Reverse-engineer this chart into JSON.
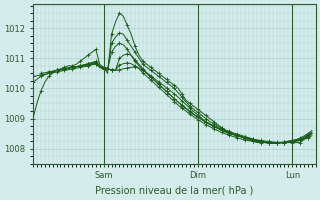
{
  "background_color": "#d4ecec",
  "grid_color": "#b0d0d0",
  "line_color": "#1a5c1a",
  "marker": "+",
  "xlabel": "Pression niveau de la mer( hPa )",
  "ylim": [
    1007.5,
    1012.8
  ],
  "yticks": [
    1008,
    1009,
    1010,
    1011,
    1012
  ],
  "xlim": [
    0,
    72
  ],
  "vline_positions": [
    18,
    42,
    66
  ],
  "xtick_positions": [
    18,
    42,
    66
  ],
  "xtick_labels": [
    "Sam",
    "Dim",
    "Lun"
  ],
  "series": [
    {
      "x": [
        0,
        1,
        2,
        3,
        4,
        5,
        6,
        7,
        8,
        9,
        10,
        11,
        12,
        13,
        14,
        15,
        16,
        17,
        18,
        19,
        20,
        21,
        22,
        23,
        24,
        25,
        26,
        27,
        28,
        29,
        30,
        31,
        32,
        33,
        34,
        35,
        36,
        37,
        38,
        39,
        40,
        41,
        42,
        43,
        44,
        45,
        46,
        47,
        48,
        49,
        50,
        51,
        52,
        53,
        54,
        55,
        56,
        57,
        58,
        59,
        60,
        61,
        62,
        63,
        64,
        65,
        66,
        67,
        68,
        69,
        70,
        71
      ],
      "y": [
        1009.0,
        1009.5,
        1009.9,
        1010.2,
        1010.4,
        1010.5,
        1010.6,
        1010.65,
        1010.7,
        1010.75,
        1010.75,
        1010.8,
        1010.9,
        1011.0,
        1011.1,
        1011.2,
        1011.3,
        1010.8,
        1010.7,
        1010.5,
        1011.8,
        1012.2,
        1012.5,
        1012.4,
        1012.1,
        1011.8,
        1011.4,
        1011.1,
        1010.9,
        1010.8,
        1010.7,
        1010.6,
        1010.5,
        1010.4,
        1010.3,
        1010.2,
        1010.1,
        1010.0,
        1009.8,
        1009.6,
        1009.5,
        1009.4,
        1009.3,
        1009.2,
        1009.1,
        1009.0,
        1008.9,
        1008.8,
        1008.7,
        1008.6,
        1008.55,
        1008.5,
        1008.45,
        1008.4,
        1008.35,
        1008.3,
        1008.25,
        1008.2,
        1008.2,
        1008.2,
        1008.2,
        1008.2,
        1008.2,
        1008.2,
        1008.2,
        1008.2,
        1008.2,
        1008.2,
        1008.2,
        1008.3,
        1008.4,
        1008.5
      ]
    },
    {
      "x": [
        0,
        1,
        2,
        3,
        4,
        5,
        6,
        7,
        8,
        9,
        10,
        11,
        12,
        13,
        14,
        15,
        16,
        17,
        18,
        19,
        20,
        21,
        22,
        23,
        24,
        25,
        26,
        27,
        28,
        29,
        30,
        31,
        32,
        33,
        34,
        35,
        36,
        37,
        38,
        39,
        40,
        41,
        42,
        43,
        44,
        45,
        46,
        47,
        48,
        49,
        50,
        51,
        52,
        53,
        54,
        55,
        56,
        57,
        58,
        59,
        60,
        61,
        62,
        63,
        64,
        65,
        66,
        67,
        68,
        69,
        70,
        71
      ],
      "y": [
        1010.2,
        1010.3,
        1010.4,
        1010.45,
        1010.5,
        1010.55,
        1010.6,
        1010.62,
        1010.65,
        1010.68,
        1010.7,
        1010.72,
        1010.75,
        1010.78,
        1010.82,
        1010.86,
        1010.9,
        1010.7,
        1010.65,
        1010.6,
        1011.5,
        1011.7,
        1011.85,
        1011.8,
        1011.6,
        1011.4,
        1011.2,
        1011.0,
        1010.8,
        1010.7,
        1010.6,
        1010.5,
        1010.4,
        1010.3,
        1010.2,
        1010.1,
        1010.0,
        1009.85,
        1009.7,
        1009.55,
        1009.4,
        1009.3,
        1009.2,
        1009.1,
        1009.0,
        1008.9,
        1008.82,
        1008.75,
        1008.68,
        1008.62,
        1008.57,
        1008.52,
        1008.48,
        1008.44,
        1008.4,
        1008.36,
        1008.32,
        1008.28,
        1008.25,
        1008.22,
        1008.2,
        1008.18,
        1008.18,
        1008.2,
        1008.22,
        1008.25,
        1008.28,
        1008.3,
        1008.35,
        1008.42,
        1008.5,
        1008.6
      ]
    },
    {
      "x": [
        0,
        1,
        2,
        3,
        4,
        5,
        6,
        7,
        8,
        9,
        10,
        11,
        12,
        13,
        14,
        15,
        16,
        17,
        18,
        19,
        20,
        21,
        22,
        23,
        24,
        25,
        26,
        27,
        28,
        29,
        30,
        31,
        32,
        33,
        34,
        35,
        36,
        37,
        38,
        39,
        40,
        41,
        42,
        43,
        44,
        45,
        46,
        47,
        48,
        49,
        50,
        51,
        52,
        53,
        54,
        55,
        56,
        57,
        58,
        59,
        60,
        61,
        62,
        63,
        64,
        65,
        66,
        67,
        68,
        69,
        70,
        71
      ],
      "y": [
        1010.4,
        1010.42,
        1010.45,
        1010.47,
        1010.5,
        1010.52,
        1010.55,
        1010.57,
        1010.6,
        1010.62,
        1010.65,
        1010.67,
        1010.7,
        1010.72,
        1010.75,
        1010.78,
        1010.82,
        1010.7,
        1010.65,
        1010.62,
        1011.2,
        1011.4,
        1011.5,
        1011.45,
        1011.3,
        1011.1,
        1010.9,
        1010.75,
        1010.62,
        1010.52,
        1010.42,
        1010.32,
        1010.22,
        1010.12,
        1010.02,
        1009.92,
        1009.82,
        1009.7,
        1009.58,
        1009.46,
        1009.34,
        1009.22,
        1009.12,
        1009.0,
        1008.9,
        1008.82,
        1008.74,
        1008.68,
        1008.62,
        1008.56,
        1008.5,
        1008.46,
        1008.42,
        1008.38,
        1008.34,
        1008.3,
        1008.27,
        1008.24,
        1008.22,
        1008.2,
        1008.18,
        1008.17,
        1008.17,
        1008.18,
        1008.2,
        1008.22,
        1008.25,
        1008.28,
        1008.32,
        1008.38,
        1008.46,
        1008.55
      ]
    },
    {
      "x": [
        2,
        3,
        4,
        5,
        6,
        7,
        8,
        9,
        10,
        11,
        12,
        13,
        14,
        15,
        16,
        17,
        18,
        19,
        20,
        21,
        22,
        23,
        24,
        25,
        26,
        27,
        28,
        29,
        30,
        31,
        32,
        33,
        34,
        35,
        36,
        37,
        38,
        39,
        40,
        41,
        42,
        43,
        44,
        45,
        46,
        47,
        48,
        49,
        50,
        51,
        52,
        53,
        54,
        55,
        56,
        57,
        58,
        59,
        60,
        61,
        62,
        63,
        64,
        65,
        66,
        67,
        68,
        69,
        70,
        71
      ],
      "y": [
        1010.5,
        1010.52,
        1010.55,
        1010.57,
        1010.6,
        1010.62,
        1010.65,
        1010.67,
        1010.7,
        1010.72,
        1010.75,
        1010.78,
        1010.82,
        1010.85,
        1010.88,
        1010.75,
        1010.7,
        1010.65,
        1010.62,
        1010.6,
        1011.0,
        1011.1,
        1011.15,
        1011.1,
        1010.95,
        1010.8,
        1010.65,
        1010.5,
        1010.38,
        1010.26,
        1010.14,
        1010.02,
        1009.9,
        1009.78,
        1009.66,
        1009.54,
        1009.44,
        1009.34,
        1009.24,
        1009.14,
        1009.05,
        1008.96,
        1008.88,
        1008.8,
        1008.73,
        1008.67,
        1008.61,
        1008.56,
        1008.51,
        1008.47,
        1008.43,
        1008.4,
        1008.37,
        1008.34,
        1008.31,
        1008.29,
        1008.27,
        1008.25,
        1008.24,
        1008.22,
        1008.21,
        1008.21,
        1008.21,
        1008.22,
        1008.24,
        1008.27,
        1008.3,
        1008.35,
        1008.42,
        1008.5
      ]
    },
    {
      "x": [
        4,
        5,
        6,
        7,
        8,
        9,
        10,
        11,
        12,
        13,
        14,
        15,
        16,
        17,
        18,
        19,
        20,
        21,
        22,
        23,
        24,
        25,
        26,
        27,
        28,
        29,
        30,
        31,
        32,
        33,
        34,
        35,
        36,
        37,
        38,
        39,
        40,
        41,
        42,
        43,
        44,
        45,
        46,
        47,
        48,
        49,
        50,
        51,
        52,
        53,
        54,
        55,
        56,
        57,
        58,
        59,
        60,
        61,
        62,
        63,
        64,
        65,
        66,
        67,
        68,
        69,
        70,
        71
      ],
      "y": [
        1010.55,
        1010.57,
        1010.6,
        1010.62,
        1010.65,
        1010.67,
        1010.7,
        1010.72,
        1010.75,
        1010.78,
        1010.8,
        1010.82,
        1010.85,
        1010.72,
        1010.68,
        1010.65,
        1010.62,
        1010.6,
        1010.78,
        1010.82,
        1010.85,
        1010.82,
        1010.75,
        1010.65,
        1010.52,
        1010.4,
        1010.28,
        1010.16,
        1010.04,
        1009.92,
        1009.8,
        1009.68,
        1009.56,
        1009.44,
        1009.34,
        1009.24,
        1009.14,
        1009.05,
        1008.96,
        1008.88,
        1008.8,
        1008.73,
        1008.66,
        1008.6,
        1008.54,
        1008.49,
        1008.44,
        1008.4,
        1008.36,
        1008.32,
        1008.29,
        1008.26,
        1008.24,
        1008.22,
        1008.21,
        1008.2,
        1008.2,
        1008.2,
        1008.2,
        1008.2,
        1008.2,
        1008.21,
        1008.22,
        1008.24,
        1008.27,
        1008.31,
        1008.36,
        1008.43
      ]
    },
    {
      "x": [
        6,
        7,
        8,
        9,
        10,
        11,
        12,
        13,
        14,
        15,
        16,
        17,
        18,
        19,
        20,
        21,
        22,
        23,
        24,
        25,
        26,
        27,
        28,
        29,
        30,
        31,
        32,
        33,
        34,
        35,
        36,
        37,
        38,
        39,
        40,
        41,
        42,
        43,
        44,
        45,
        46,
        47,
        48,
        49,
        50,
        51,
        52,
        53,
        54,
        55,
        56,
        57,
        58,
        59,
        60,
        61,
        62,
        63,
        64,
        65,
        66,
        67,
        68,
        69,
        70,
        71
      ],
      "y": [
        1010.6,
        1010.62,
        1010.65,
        1010.67,
        1010.7,
        1010.72,
        1010.74,
        1010.76,
        1010.78,
        1010.8,
        1010.82,
        1010.72,
        1010.68,
        1010.65,
        1010.62,
        1010.6,
        1010.62,
        1010.65,
        1010.68,
        1010.7,
        1010.72,
        1010.68,
        1010.6,
        1010.5,
        1010.38,
        1010.26,
        1010.14,
        1010.02,
        1009.9,
        1009.78,
        1009.66,
        1009.54,
        1009.42,
        1009.32,
        1009.22,
        1009.12,
        1009.04,
        1008.96,
        1008.88,
        1008.82,
        1008.76,
        1008.7,
        1008.64,
        1008.58,
        1008.53,
        1008.48,
        1008.44,
        1008.4,
        1008.36,
        1008.33,
        1008.3,
        1008.27,
        1008.25,
        1008.23,
        1008.21,
        1008.2,
        1008.2,
        1008.2,
        1008.21,
        1008.22,
        1008.24,
        1008.27,
        1008.31,
        1008.36,
        1008.43,
        1008.52
      ]
    }
  ]
}
